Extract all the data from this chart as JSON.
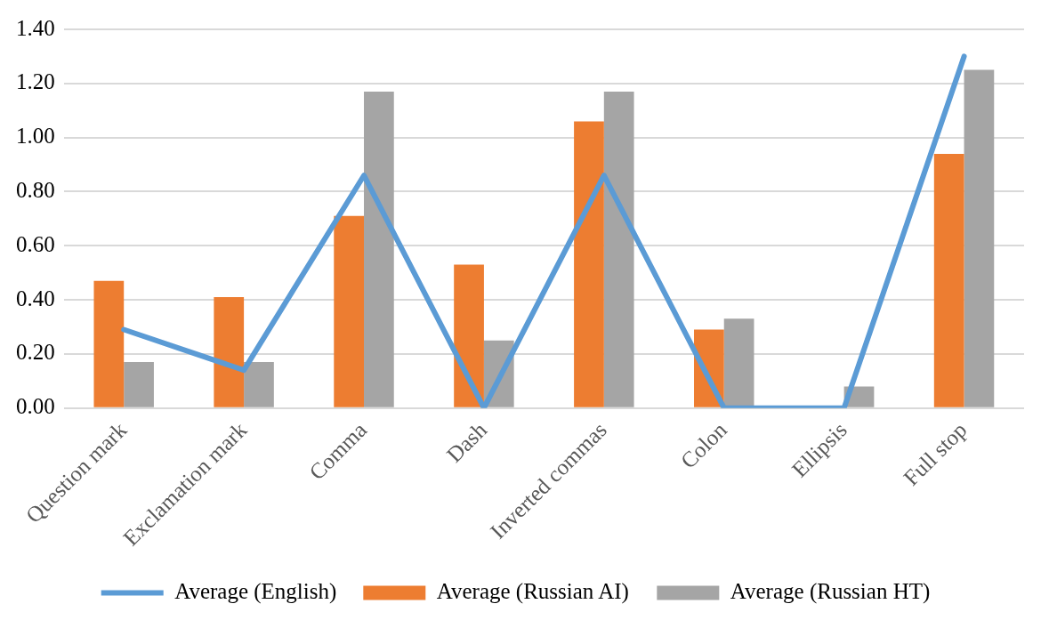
{
  "chart_data": {
    "type": "bar",
    "categories": [
      "Question mark",
      "Exclamation mark",
      "Comma",
      "Dash",
      "Inverted commas",
      "Colon",
      "Ellipsis",
      "Full stop"
    ],
    "series": [
      {
        "name": "Average (Russian AI)",
        "color": "#ed7d31",
        "values": [
          0.47,
          0.41,
          0.71,
          0.53,
          1.06,
          0.29,
          0,
          0.94
        ]
      },
      {
        "name": "Average (Russian HT)",
        "color": "#a5a5a5",
        "values": [
          0.17,
          0.17,
          1.17,
          0.25,
          1.17,
          0.33,
          0.08,
          1.25
        ]
      },
      {
        "name": "Average (English)",
        "type": "line",
        "color": "#5b9bd5",
        "marker": "none",
        "values": [
          0.29,
          0.14,
          0.86,
          0,
          0.86,
          0,
          0,
          1.3
        ]
      }
    ],
    "ylim": [
      0,
      1.4
    ],
    "yticks": [
      {
        "value": 0,
        "label": "0.00"
      },
      {
        "value": 0.2,
        "label": "0.20"
      },
      {
        "value": 0.4,
        "label": "0.40"
      },
      {
        "value": 0.6,
        "label": "0.60"
      },
      {
        "value": 0.8,
        "label": "0.80"
      },
      {
        "value": 1,
        "label": "1.00"
      },
      {
        "value": 1.2,
        "label": "1.20"
      },
      {
        "value": 1.4,
        "label": "1.40"
      }
    ],
    "grid": "y",
    "legend": "bottom"
  }
}
